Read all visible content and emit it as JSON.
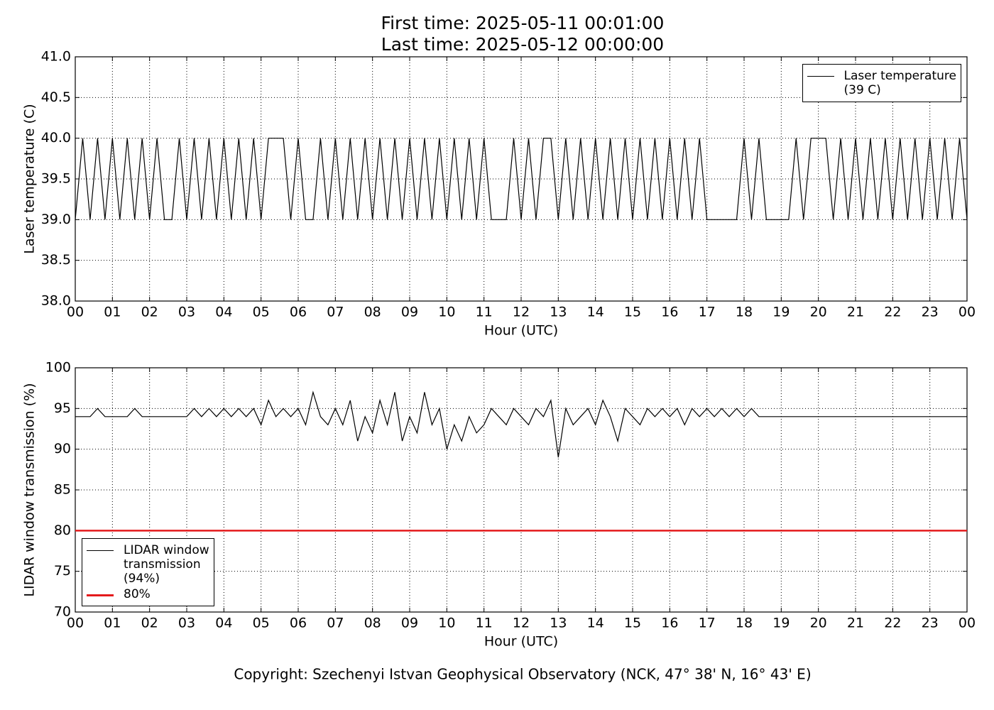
{
  "title": "First time: 2025-05-11 00:01:00",
  "subtitle": "Last time: 2025-05-12 00:00:00",
  "footer": "Copyright: Szechenyi Istvan Geophysical Observatory (NCK, 47° 38' N, 16° 43' E)",
  "chart_data": [
    {
      "type": "line",
      "x_label": "Hour (UTC)",
      "y_label": "Laser temperature (C)",
      "xlim": [
        0,
        24
      ],
      "ylim": [
        38,
        41
      ],
      "grid": true,
      "legend": "upper right",
      "xticks": [
        {
          "value": 0,
          "label": "00"
        },
        {
          "value": 1,
          "label": "01"
        },
        {
          "value": 2,
          "label": "02"
        },
        {
          "value": 3,
          "label": "03"
        },
        {
          "value": 4,
          "label": "04"
        },
        {
          "value": 5,
          "label": "05"
        },
        {
          "value": 6,
          "label": "06"
        },
        {
          "value": 7,
          "label": "07"
        },
        {
          "value": 8,
          "label": "08"
        },
        {
          "value": 9,
          "label": "09"
        },
        {
          "value": 10,
          "label": "10"
        },
        {
          "value": 11,
          "label": "11"
        },
        {
          "value": 12,
          "label": "12"
        },
        {
          "value": 13,
          "label": "13"
        },
        {
          "value": 14,
          "label": "14"
        },
        {
          "value": 15,
          "label": "15"
        },
        {
          "value": 16,
          "label": "16"
        },
        {
          "value": 17,
          "label": "17"
        },
        {
          "value": 18,
          "label": "18"
        },
        {
          "value": 19,
          "label": "19"
        },
        {
          "value": 20,
          "label": "20"
        },
        {
          "value": 21,
          "label": "21"
        },
        {
          "value": 22,
          "label": "22"
        },
        {
          "value": 23,
          "label": "23"
        },
        {
          "value": 24,
          "label": "00"
        }
      ],
      "yticks": [
        {
          "value": 38,
          "label": "38.0"
        },
        38.5,
        {
          "value": 39,
          "label": "39.0"
        },
        39.5,
        {
          "value": 40,
          "label": "40.0"
        },
        40.5,
        {
          "value": 41,
          "label": "41.0"
        }
      ],
      "x": [
        0,
        0.2,
        0.4,
        0.6,
        0.8,
        1,
        1.2,
        1.4,
        1.6,
        1.8,
        2,
        2.2,
        2.4,
        2.6,
        2.8,
        3,
        3.2,
        3.4,
        3.6,
        3.8,
        4,
        4.2,
        4.4,
        4.6,
        4.8,
        5,
        5.2,
        5.4,
        5.6,
        5.8,
        6,
        6.2,
        6.4,
        6.6,
        6.8,
        7,
        7.2,
        7.4,
        7.6,
        7.8,
        8,
        8.2,
        8.4,
        8.6,
        8.8,
        9,
        9.2,
        9.4,
        9.6,
        9.8,
        10,
        10.2,
        10.4,
        10.6,
        10.8,
        11,
        11.2,
        11.4,
        11.6,
        11.8,
        12,
        12.2,
        12.4,
        12.6,
        12.8,
        13,
        13.2,
        13.4,
        13.6,
        13.8,
        14,
        14.2,
        14.4,
        14.6,
        14.8,
        15,
        15.2,
        15.4,
        15.6,
        15.8,
        16,
        16.2,
        16.4,
        16.6,
        16.8,
        17,
        17.2,
        17.4,
        17.6,
        17.8,
        18,
        18.2,
        18.4,
        18.6,
        18.8,
        19,
        19.2,
        19.4,
        19.6,
        19.8,
        20,
        20.2,
        20.4,
        20.6,
        20.8,
        21,
        21.2,
        21.4,
        21.6,
        21.8,
        22,
        22.2,
        22.4,
        22.6,
        22.8,
        23,
        23.2,
        23.4,
        23.6,
        23.8,
        24
      ],
      "series": [
        {
          "name": "Laser temperature\n(39 C)",
          "color": "#000000",
          "values": [
            39,
            40,
            39,
            40,
            39,
            40,
            39,
            40,
            39,
            40,
            39,
            40,
            39,
            39,
            40,
            39,
            40,
            39,
            40,
            39,
            40,
            39,
            40,
            39,
            40,
            39,
            40,
            40,
            40,
            39,
            40,
            39,
            39,
            40,
            39,
            40,
            39,
            40,
            39,
            40,
            39,
            40,
            39,
            40,
            39,
            40,
            39,
            40,
            39,
            40,
            39,
            40,
            39,
            40,
            39,
            40,
            39,
            39,
            39,
            40,
            39,
            40,
            39,
            40,
            40,
            39,
            40,
            39,
            40,
            39,
            40,
            39,
            40,
            39,
            40,
            39,
            40,
            39,
            40,
            39,
            40,
            39,
            40,
            39,
            40,
            39,
            39,
            39,
            39,
            39,
            40,
            39,
            40,
            39,
            39,
            39,
            39,
            40,
            39,
            40,
            40,
            40,
            39,
            40,
            39,
            40,
            39,
            40,
            39,
            40,
            39,
            40,
            39,
            40,
            39,
            40,
            39,
            40,
            39,
            40,
            39
          ]
        }
      ]
    },
    {
      "type": "line",
      "x_label": "Hour (UTC)",
      "y_label": "LIDAR window transmission (%)",
      "xlim": [
        0,
        24
      ],
      "ylim": [
        70,
        100
      ],
      "grid": true,
      "legend": "lower left",
      "xticks": [
        {
          "value": 0,
          "label": "00"
        },
        {
          "value": 1,
          "label": "01"
        },
        {
          "value": 2,
          "label": "02"
        },
        {
          "value": 3,
          "label": "03"
        },
        {
          "value": 4,
          "label": "04"
        },
        {
          "value": 5,
          "label": "05"
        },
        {
          "value": 6,
          "label": "06"
        },
        {
          "value": 7,
          "label": "07"
        },
        {
          "value": 8,
          "label": "08"
        },
        {
          "value": 9,
          "label": "09"
        },
        {
          "value": 10,
          "label": "10"
        },
        {
          "value": 11,
          "label": "11"
        },
        {
          "value": 12,
          "label": "12"
        },
        {
          "value": 13,
          "label": "13"
        },
        {
          "value": 14,
          "label": "14"
        },
        {
          "value": 15,
          "label": "15"
        },
        {
          "value": 16,
          "label": "16"
        },
        {
          "value": 17,
          "label": "17"
        },
        {
          "value": 18,
          "label": "18"
        },
        {
          "value": 19,
          "label": "19"
        },
        {
          "value": 20,
          "label": "20"
        },
        {
          "value": 21,
          "label": "21"
        },
        {
          "value": 22,
          "label": "22"
        },
        {
          "value": 23,
          "label": "23"
        },
        {
          "value": 24,
          "label": "00"
        }
      ],
      "yticks": [
        70,
        75,
        80,
        85,
        90,
        95,
        100
      ],
      "x": [
        0,
        0.2,
        0.4,
        0.6,
        0.8,
        1,
        1.2,
        1.4,
        1.6,
        1.8,
        2,
        2.2,
        2.4,
        2.6,
        2.8,
        3,
        3.2,
        3.4,
        3.6,
        3.8,
        4,
        4.2,
        4.4,
        4.6,
        4.8,
        5,
        5.2,
        5.4,
        5.6,
        5.8,
        6,
        6.2,
        6.4,
        6.6,
        6.8,
        7,
        7.2,
        7.4,
        7.6,
        7.8,
        8,
        8.2,
        8.4,
        8.6,
        8.8,
        9,
        9.2,
        9.4,
        9.6,
        9.8,
        10,
        10.2,
        10.4,
        10.6,
        10.8,
        11,
        11.2,
        11.4,
        11.6,
        11.8,
        12,
        12.2,
        12.4,
        12.6,
        12.8,
        13,
        13.2,
        13.4,
        13.6,
        13.8,
        14,
        14.2,
        14.4,
        14.6,
        14.8,
        15,
        15.2,
        15.4,
        15.6,
        15.8,
        16,
        16.2,
        16.4,
        16.6,
        16.8,
        17,
        17.2,
        17.4,
        17.6,
        17.8,
        18,
        18.2,
        18.4,
        18.6,
        18.8,
        19,
        19.2,
        19.4,
        19.6,
        19.8,
        20,
        20.2,
        20.4,
        20.6,
        20.8,
        21,
        21.2,
        21.4,
        21.6,
        21.8,
        22,
        22.2,
        22.4,
        22.6,
        22.8,
        23,
        23.2,
        23.4,
        23.6,
        23.8,
        24
      ],
      "series": [
        {
          "name": "LIDAR window\ntransmission\n(94%)",
          "color": "#000000",
          "values": [
            94,
            94,
            94,
            95,
            94,
            94,
            94,
            94,
            95,
            94,
            94,
            94,
            94,
            94,
            94,
            94,
            95,
            94,
            95,
            94,
            95,
            94,
            95,
            94,
            95,
            93,
            96,
            94,
            95,
            94,
            95,
            93,
            97,
            94,
            93,
            95,
            93,
            96,
            91,
            94,
            92,
            96,
            93,
            97,
            91,
            94,
            92,
            97,
            93,
            95,
            90,
            93,
            91,
            94,
            92,
            93,
            95,
            94,
            93,
            95,
            94,
            93,
            95,
            94,
            96,
            89,
            95,
            93,
            94,
            95,
            93,
            96,
            94,
            91,
            95,
            94,
            93,
            95,
            94,
            95,
            94,
            95,
            93,
            95,
            94,
            95,
            94,
            95,
            94,
            95,
            94,
            95,
            94,
            94,
            94,
            94,
            94,
            94,
            94,
            94,
            94,
            94,
            94,
            94,
            94,
            94,
            94,
            94,
            94,
            94,
            94,
            94,
            94,
            94,
            94,
            94,
            94,
            94,
            94,
            94,
            94
          ]
        },
        {
          "name": "80%",
          "color": "#e41a1c",
          "x": [
            0,
            24
          ],
          "values": [
            80,
            80
          ]
        }
      ]
    }
  ]
}
